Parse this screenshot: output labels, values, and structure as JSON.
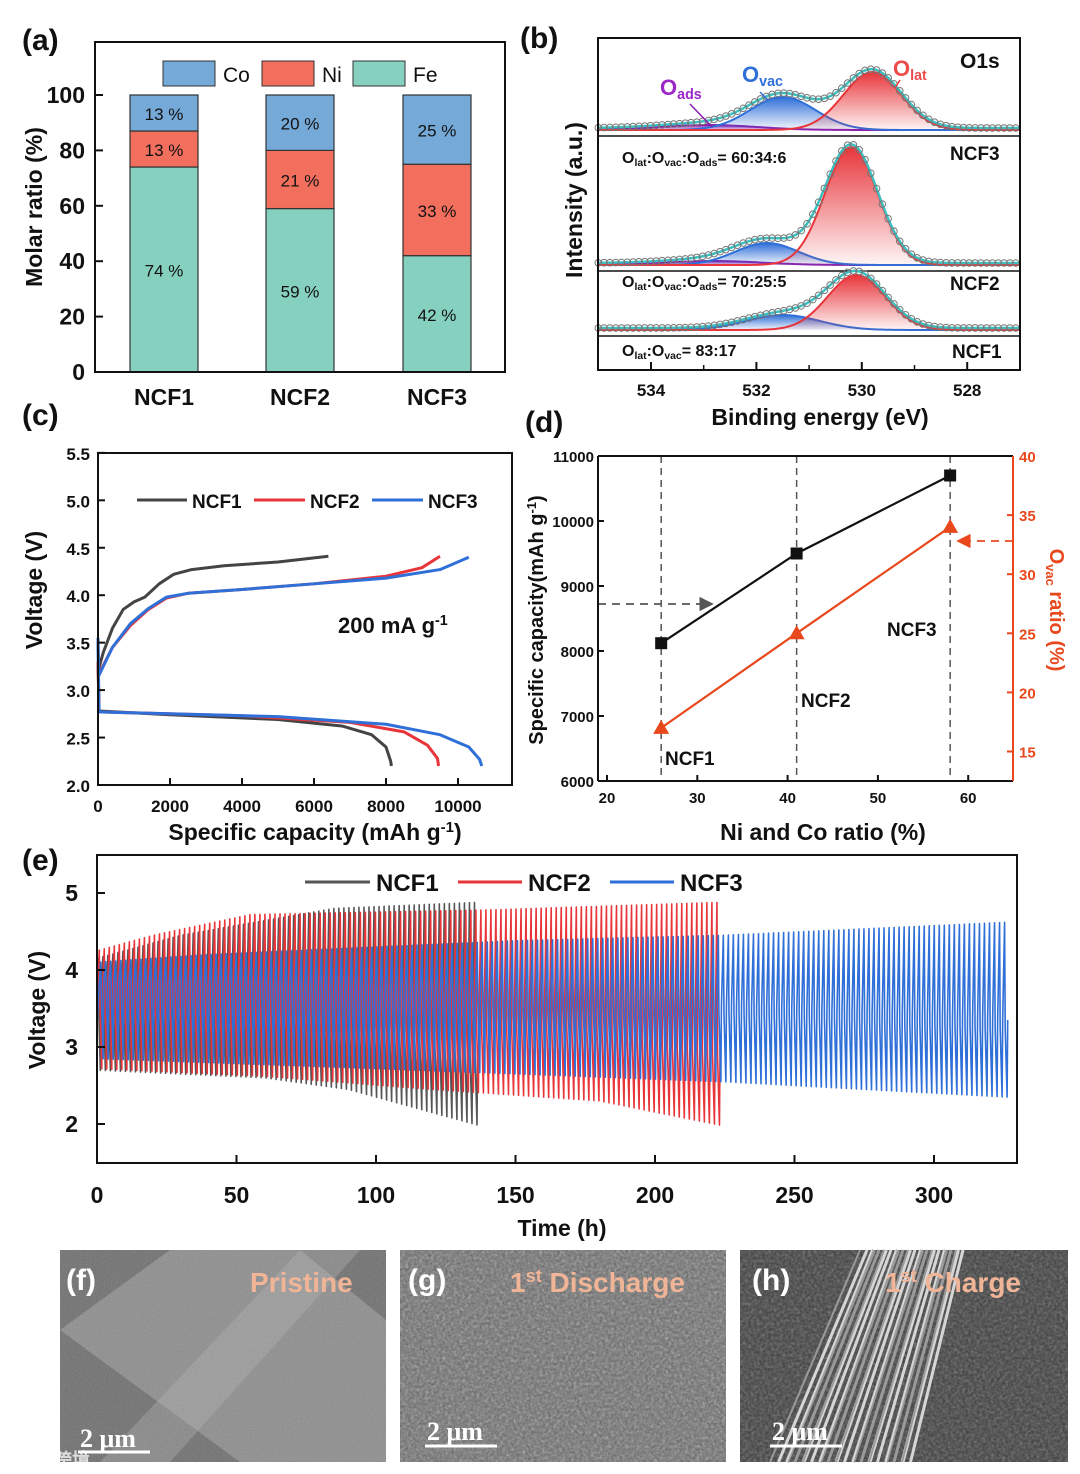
{
  "watermark": "大数跨境",
  "chart_data": [
    {
      "panel": "(a)",
      "type": "bar",
      "stacked": true,
      "categories": [
        "NCF1",
        "NCF2",
        "NCF3"
      ],
      "series": [
        {
          "name": "Fe",
          "values": [
            74,
            59,
            42
          ],
          "labels": [
            "74 %",
            "59 %",
            "42 %"
          ],
          "color": "#86d0c0"
        },
        {
          "name": "Ni",
          "values": [
            13,
            21,
            33
          ],
          "labels": [
            "13 %",
            "21 %",
            "33 %"
          ],
          "color": "#f26f5e"
        },
        {
          "name": "Co",
          "values": [
            13,
            20,
            25
          ],
          "labels": [
            "13 %",
            "20 %",
            "25 %"
          ],
          "color": "#74a9d8"
        }
      ],
      "legend": [
        "Co",
        "Ni",
        "Fe"
      ],
      "legend_position": "top",
      "ylabel": "Molar ratio (%)",
      "ylim": [
        0,
        110
      ],
      "yticks": [
        "0",
        "20",
        "40",
        "60",
        "80",
        "100"
      ]
    },
    {
      "panel": "(b)",
      "type": "line",
      "title": "O1s",
      "xlabel": "Binding energy (eV)",
      "ylabel": "Intensity (a.u.)",
      "xlim": [
        535,
        527
      ],
      "xticks": [
        "534",
        "532",
        "530",
        "528"
      ],
      "peak_labels": {
        "ads": [
          {
            "t": "O"
          },
          {
            "t": "ads",
            "sub": true
          }
        ],
        "vac": [
          {
            "t": "O"
          },
          {
            "t": "vac",
            "sub": true
          }
        ],
        "lat": [
          {
            "t": "O"
          },
          {
            "t": "lat",
            "sub": true
          }
        ]
      },
      "colors": {
        "lat": "#e8353a",
        "vac": "#2f6fd8",
        "ads": "#8a1fb0",
        "fit": "#3bbfbf",
        "ads_label": "#9b27c8",
        "vac_label": "#2f6fd8",
        "lat_label": "#ef4b4b"
      },
      "samples": [
        {
          "name": "NCF3",
          "offset": 240,
          "ratio": [
            {
              "t": "O"
            },
            {
              "t": "lat",
              "sub": true
            },
            {
              "t": ":O"
            },
            {
              "t": "vac",
              "sub": true
            },
            {
              "t": ":O"
            },
            {
              "t": "ads",
              "sub": true
            },
            {
              "t": "= 60:34:6"
            }
          ],
          "peaks": {
            "lat": [
              529.8,
              58,
              0.55
            ],
            "vac": [
              531.5,
              33,
              0.62
            ],
            "ads": [
              532.9,
              5,
              0.9
            ]
          }
        },
        {
          "name": "NCF2",
          "offset": 105,
          "ratio": [
            {
              "t": "O"
            },
            {
              "t": "lat",
              "sub": true
            },
            {
              "t": ":O"
            },
            {
              "t": "vac",
              "sub": true
            },
            {
              "t": ":O"
            },
            {
              "t": "ads",
              "sub": true
            },
            {
              "t": "= 70:25:5"
            }
          ],
          "peaks": {
            "lat": [
              530.2,
              118,
              0.5
            ],
            "vac": [
              531.8,
              22,
              0.6
            ],
            "ads": [
              532.8,
              4,
              0.9
            ]
          }
        },
        {
          "name": "NCF1",
          "offset": 40,
          "ratio": [
            {
              "t": "O"
            },
            {
              "t": "lat",
              "sub": true
            },
            {
              "t": ":O"
            },
            {
              "t": "vac",
              "sub": true
            },
            {
              "t": "= 83:17"
            }
          ],
          "peaks": {
            "lat": [
              530.1,
              55,
              0.55
            ],
            "vac": [
              531.5,
              15,
              0.7
            ]
          }
        }
      ]
    },
    {
      "panel": "(c)",
      "type": "line",
      "annotation": [
        {
          "t": "200 mA g"
        },
        {
          "t": "-1",
          "sup": true
        }
      ],
      "xlabel": [
        {
          "t": "Specific capacity (mAh g"
        },
        {
          "t": "-1",
          "sup": true
        },
        {
          "t": ")"
        }
      ],
      "ylabel": "Voltage (V)",
      "xlim": [
        0,
        11500
      ],
      "ylim": [
        2.0,
        5.5
      ],
      "xticks": [
        "0",
        "2000",
        "4000",
        "6000",
        "8000",
        "10000"
      ],
      "yticks": [
        "2.0",
        "2.5",
        "3.0",
        "3.5",
        "4.0",
        "4.5",
        "5.0",
        "5.5"
      ],
      "legend_position": "top-left",
      "series": [
        {
          "name": "NCF1",
          "color": "#444444",
          "charge": [
            [
              0,
              3.2
            ],
            [
              150,
              3.4
            ],
            [
              400,
              3.65
            ],
            [
              700,
              3.85
            ],
            [
              1000,
              3.93
            ],
            [
              1300,
              3.98
            ],
            [
              1700,
              4.12
            ],
            [
              2100,
              4.22
            ],
            [
              2600,
              4.27
            ],
            [
              3500,
              4.31
            ],
            [
              5000,
              4.35
            ],
            [
              6400,
              4.41
            ]
          ],
          "discharge": [
            [
              0,
              3.3
            ],
            [
              30,
              2.78
            ],
            [
              2000,
              2.74
            ],
            [
              5000,
              2.69
            ],
            [
              6800,
              2.62
            ],
            [
              7600,
              2.53
            ],
            [
              8000,
              2.4
            ],
            [
              8130,
              2.25
            ],
            [
              8150,
              2.2
            ]
          ]
        },
        {
          "name": "NCF2",
          "color": "#e8353a",
          "charge": [
            [
              0,
              3.15
            ],
            [
              400,
              3.45
            ],
            [
              900,
              3.68
            ],
            [
              1400,
              3.85
            ],
            [
              1900,
              3.97
            ],
            [
              2500,
              4.02
            ],
            [
              4000,
              4.06
            ],
            [
              6000,
              4.12
            ],
            [
              8000,
              4.2
            ],
            [
              9000,
              4.29
            ],
            [
              9500,
              4.41
            ]
          ],
          "discharge": [
            [
              0,
              3.3
            ],
            [
              30,
              2.77
            ],
            [
              4000,
              2.73
            ],
            [
              7000,
              2.66
            ],
            [
              8500,
              2.56
            ],
            [
              9150,
              2.42
            ],
            [
              9430,
              2.28
            ],
            [
              9460,
              2.2
            ]
          ]
        },
        {
          "name": "NCF3",
          "color": "#2f6fd8",
          "charge": [
            [
              0,
              3.55
            ],
            [
              20,
              3.15
            ],
            [
              400,
              3.45
            ],
            [
              900,
              3.7
            ],
            [
              1400,
              3.86
            ],
            [
              1900,
              3.98
            ],
            [
              2500,
              4.02
            ],
            [
              4000,
              4.06
            ],
            [
              6000,
              4.12
            ],
            [
              8000,
              4.18
            ],
            [
              9500,
              4.27
            ],
            [
              10300,
              4.4
            ]
          ],
          "discharge": [
            [
              0,
              3.5
            ],
            [
              30,
              2.77
            ],
            [
              5000,
              2.72
            ],
            [
              8000,
              2.64
            ],
            [
              9500,
              2.53
            ],
            [
              10300,
              2.4
            ],
            [
              10600,
              2.27
            ],
            [
              10660,
              2.2
            ]
          ]
        }
      ]
    },
    {
      "panel": "(d)",
      "type": "line",
      "xlabel": "Ni and Co ratio (%)",
      "ylabel": [
        {
          "t": "Specific capacity(mAh g"
        },
        {
          "t": "-1",
          "sup": true
        },
        {
          "t": ")"
        }
      ],
      "y2label": [
        {
          "t": "O"
        },
        {
          "t": "vac",
          "sub": true
        },
        {
          "t": " ratio (%)"
        }
      ],
      "xlim": [
        20,
        65
      ],
      "ylim": [
        6000,
        11000
      ],
      "y2lim": [
        12.5,
        40
      ],
      "xticks": [
        "20",
        "30",
        "40",
        "50",
        "60"
      ],
      "yticks": [
        "6000",
        "7000",
        "8000",
        "9000",
        "10000",
        "11000"
      ],
      "y2ticks": [
        "15",
        "20",
        "25",
        "30",
        "35",
        "40"
      ],
      "x": [
        26,
        41,
        58
      ],
      "point_labels": [
        "NCF1",
        "NCF2",
        "NCF3"
      ],
      "series": [
        {
          "name": "Specific capacity",
          "axis": "left",
          "values": [
            8120,
            9500,
            10700
          ],
          "color": "#111111",
          "marker": "square"
        },
        {
          "name": "Ovac ratio",
          "axis": "right",
          "values": [
            17,
            25,
            34
          ],
          "color": "#e8481c",
          "marker": "triangle"
        }
      ]
    },
    {
      "panel": "(e)",
      "type": "line",
      "xlabel": "Time (h)",
      "ylabel": "Voltage (V)",
      "xlim": [
        0,
        330
      ],
      "ylim": [
        1.6,
        5.6
      ],
      "xticks": [
        "0",
        "50",
        "100",
        "150",
        "200",
        "250",
        "300"
      ],
      "yticks": [
        "2",
        "3",
        "4",
        "5"
      ],
      "legend_position": "top",
      "cycle_period_h": 1.8,
      "series": [
        {
          "name": "NCF1",
          "color": "#555555",
          "end_h": 137,
          "upper": [
            [
              0,
              4.15
            ],
            [
              30,
              4.45
            ],
            [
              85,
              4.8
            ],
            [
              137,
              4.88
            ]
          ],
          "lower": [
            [
              0,
              2.7
            ],
            [
              60,
              2.6
            ],
            [
              90,
              2.45
            ],
            [
              137,
              1.98
            ]
          ]
        },
        {
          "name": "NCF2",
          "color": "#e8353a",
          "end_h": 224,
          "upper": [
            [
              0,
              4.25
            ],
            [
              20,
              4.45
            ],
            [
              55,
              4.72
            ],
            [
              140,
              4.78
            ],
            [
              224,
              4.88
            ]
          ],
          "lower": [
            [
              0,
              2.72
            ],
            [
              60,
              2.62
            ],
            [
              120,
              2.45
            ],
            [
              180,
              2.3
            ],
            [
              224,
              1.98
            ]
          ]
        },
        {
          "name": "NCF3",
          "color": "#2f6fd8",
          "end_h": 326,
          "upper": [
            [
              0,
              4.1
            ],
            [
              40,
              4.2
            ],
            [
              150,
              4.38
            ],
            [
              224,
              4.45
            ],
            [
              326,
              4.62
            ]
          ],
          "lower": [
            [
              0,
              2.85
            ],
            [
              100,
              2.72
            ],
            [
              224,
              2.55
            ],
            [
              326,
              2.35
            ]
          ]
        }
      ]
    }
  ],
  "images": [
    {
      "panel": "(f)",
      "title": "Pristine",
      "scale": "2 μm"
    },
    {
      "panel": "(g)",
      "title": [
        {
          "t": "1"
        },
        {
          "t": "st",
          "sup": true
        },
        {
          "t": " Discharge"
        }
      ],
      "scale": "2 μm"
    },
    {
      "panel": "(h)",
      "title": [
        {
          "t": "1"
        },
        {
          "t": "st",
          "sup": true
        },
        {
          "t": " Charge"
        }
      ],
      "scale": "2 μm"
    }
  ]
}
